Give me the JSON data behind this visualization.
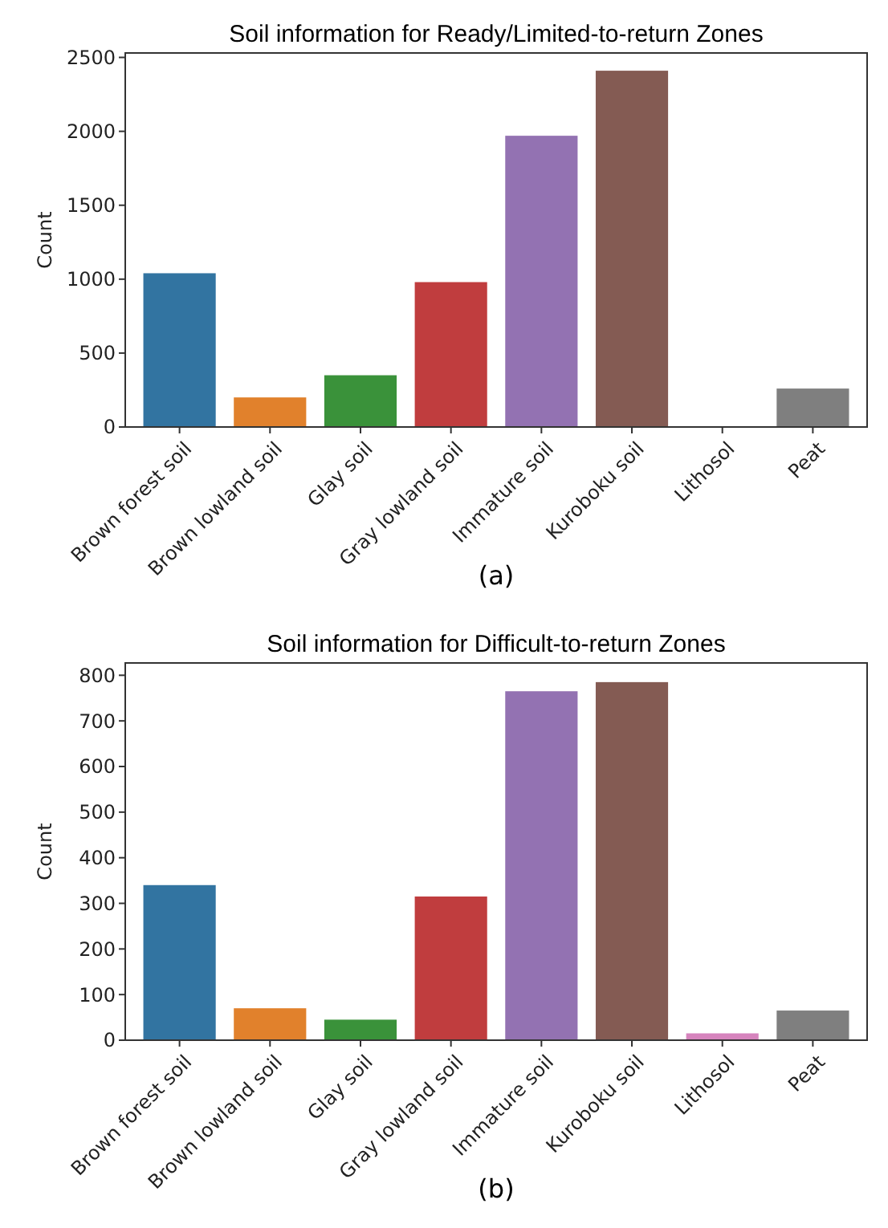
{
  "chart_data": [
    {
      "type": "bar",
      "title": "Soil information for Ready/Limited-to-return Zones",
      "ylabel": "Count",
      "categories": [
        "Brown forest soil",
        "Brown lowland soil",
        "Glay soil",
        "Gray lowland soil",
        "Immature soil",
        "Kuroboku soil",
        "Lithosol",
        "Peat"
      ],
      "values": [
        1040,
        200,
        350,
        980,
        1970,
        2410,
        0,
        260
      ],
      "colors": [
        "#3274a1",
        "#e1812c",
        "#3a923a",
        "#c03d3e",
        "#9372b2",
        "#845b53",
        "#d684bd",
        "#7f7f7f"
      ],
      "ylim": [
        0,
        2530
      ],
      "yticks": [
        0,
        500,
        1000,
        1500,
        2000,
        2500
      ],
      "annotations": [
        "(a)"
      ]
    },
    {
      "type": "bar",
      "title": "Soil information for Difficult-to-return Zones",
      "ylabel": "Count",
      "categories": [
        "Brown forest soil",
        "Brown lowland soil",
        "Glay soil",
        "Gray lowland soil",
        "Immature soil",
        "Kuroboku soil",
        "Lithosol",
        "Peat"
      ],
      "values": [
        340,
        70,
        45,
        315,
        765,
        785,
        15,
        65
      ],
      "colors": [
        "#3274a1",
        "#e1812c",
        "#3a923a",
        "#c03d3e",
        "#9372b2",
        "#845b53",
        "#d684bd",
        "#7f7f7f"
      ],
      "ylim": [
        0,
        827
      ],
      "yticks": [
        0,
        100,
        200,
        300,
        400,
        500,
        600,
        700,
        800
      ],
      "annotations": [
        "(b)"
      ]
    }
  ]
}
